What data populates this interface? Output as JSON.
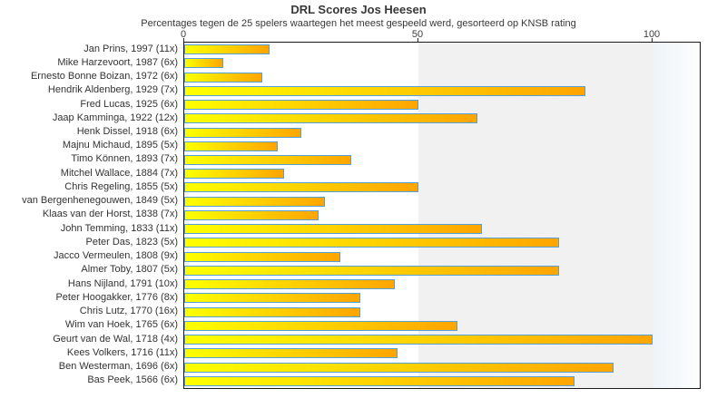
{
  "chart_data": {
    "type": "bar",
    "orientation": "horizontal",
    "title": "DRL Scores Jos Heesen",
    "subtitle": "Percentages tegen de 25 spelers waartegen het meest gespeeld werd, gesorteerd op KNSB rating",
    "xlabel": "",
    "ylabel": "",
    "xlim": [
      0,
      110
    ],
    "x_ticks": [
      0,
      50,
      100
    ],
    "grid": false,
    "legend": false,
    "categories": [
      "Jan Prins, 1997 (11x)",
      "Mike Harzevoort, 1987 (6x)",
      "Ernesto Bonne Boizan, 1972 (6x)",
      "Hendrik Aldenberg, 1929 (7x)",
      "Fred Lucas, 1925 (6x)",
      "Jaap Kamminga, 1922 (12x)",
      "Henk Dissel, 1918 (6x)",
      "Majnu Michaud, 1895 (5x)",
      "Timo Können, 1893 (7x)",
      "Mitchel Wallace, 1884 (7x)",
      "Chris Regeling, 1855 (5x)",
      "van Bergenhenegouwen, 1849 (5x)",
      "Klaas van der Horst, 1838 (7x)",
      "John Temming, 1833 (11x)",
      "Peter Das, 1823 (5x)",
      "Jacco Vermeulen, 1808 (9x)",
      "Almer Toby, 1807 (5x)",
      "Hans Nijland, 1791 (10x)",
      "Peter Hoogakker, 1776 (8x)",
      "Chris Lutz, 1770 (16x)",
      "Wim van Hoek, 1765 (6x)",
      "Geurt van de Wal, 1718 (4x)",
      "Kees Volkers, 1716 (11x)",
      "Ben Westerman, 1696 (6x)",
      "Bas Peek, 1566 (6x)"
    ],
    "values": [
      18.2,
      8.3,
      16.7,
      85.7,
      50,
      62.5,
      25,
      20,
      35.7,
      21.4,
      50,
      30,
      28.6,
      63.6,
      80,
      33.3,
      80,
      45,
      37.5,
      37.5,
      58.3,
      100,
      45.5,
      91.7,
      83.3
    ],
    "colors": {
      "bar_gradient_start": "#ffff00",
      "bar_gradient_end": "#ffa500",
      "bar_border": "#55a0d6",
      "zone_0_50": "#ffffff",
      "zone_50_100": "#f1f1f1",
      "zone_over_100_start": "#eef4f9",
      "zone_over_100_end": "#fdfdfd",
      "plot_border": "#1a1a1a",
      "text": "#383838"
    }
  }
}
